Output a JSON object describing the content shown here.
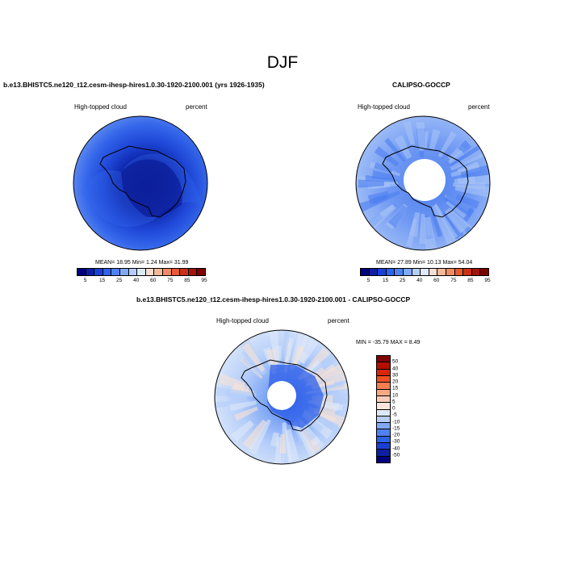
{
  "figure": {
    "title": "DJF"
  },
  "panels": [
    {
      "title": "b.e13.BHISTC5.ne120_t12.cesm-ihesp-hires1.0.30-1920-2100.001 (yrs 1926-1935)",
      "left_label": "High-topped cloud",
      "right_label": "percent",
      "stats_text": "MEAN=  18.95  Min=   1.24  Max=  31.99"
    },
    {
      "title": "CALIPSO-GOCCP",
      "left_label": "High-topped cloud",
      "right_label": "percent",
      "stats_text": "MEAN=  27.89  Min=  10.13  Max=  54.04"
    },
    {
      "title": "b.e13.BHISTC5.ne120_t12.cesm-ihesp-hires1.0.30-1920-2100.001 - CALIPSO-GOCCP",
      "left_label": "High-topped cloud",
      "right_label": "percent",
      "stats_text": "MIN = -35.79 MAX =   8.49"
    }
  ],
  "abs_colorbar": {
    "labels": [
      "5",
      "15",
      "25",
      "40",
      "60",
      "75",
      "85",
      "95"
    ],
    "colors": [
      "#00007f",
      "#0d1fa3",
      "#1a3fd6",
      "#2d62ea",
      "#4f82f0",
      "#80a8f6",
      "#b5cef9",
      "#dde8f9",
      "#f7ddcf",
      "#f6b79a",
      "#f08a62",
      "#e45a32",
      "#c93214",
      "#a3140a",
      "#7f0000"
    ]
  },
  "diff_colorbar": {
    "labels": [
      "50",
      "40",
      "30",
      "20",
      "15",
      "10",
      "5",
      "0",
      "-5",
      "-10",
      "-15",
      "-20",
      "-30",
      "-40",
      "-50"
    ],
    "colors": [
      "#7f0000",
      "#b20f02",
      "#d9260c",
      "#ef5024",
      "#f47e4f",
      "#f6a885",
      "#f8cdb8",
      "#fae6dc",
      "#dde8f9",
      "#b5cef9",
      "#80a8f6",
      "#4f82f0",
      "#2d62ea",
      "#1a3fd6",
      "#0d1fa3",
      "#00007f"
    ]
  },
  "maps": {
    "model_colors": [
      "#6d97f2",
      "#4d7ff0",
      "#3466ea",
      "#1f48d8",
      "#0e27ac",
      "#05108a"
    ],
    "obs_colors": [
      "#6f98f3",
      "#a6c3f7",
      "#4d7ff0",
      "#ffffff"
    ],
    "diff_colors": [
      "#b5cef9",
      "#dde8f9",
      "#f8e2d6",
      "#80a8f6",
      "#3d6eec",
      "#ffffff"
    ]
  }
}
